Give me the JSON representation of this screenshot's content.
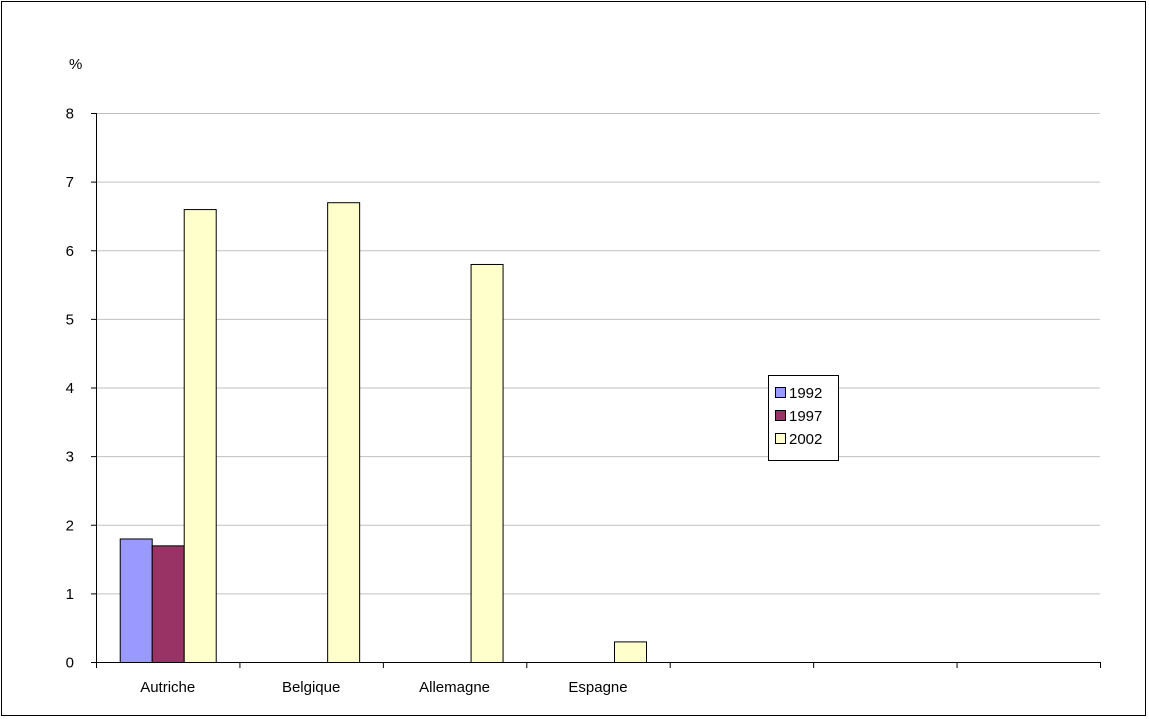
{
  "chart_data": {
    "type": "bar",
    "ylabel": "%",
    "ylim": [
      0,
      8
    ],
    "yticks": [
      0,
      1,
      2,
      3,
      4,
      5,
      6,
      7,
      8
    ],
    "grid": true,
    "legend_position": "right",
    "categories": [
      "Autriche",
      "Belgique",
      "Allemagne",
      "Espagne",
      "",
      "",
      ""
    ],
    "series": [
      {
        "name": "1992",
        "color": "#9999ff",
        "values": [
          1.8,
          null,
          null,
          null,
          null,
          null,
          null
        ]
      },
      {
        "name": "1997",
        "color": "#993366",
        "values": [
          1.7,
          null,
          null,
          null,
          null,
          null,
          null
        ]
      },
      {
        "name": "2002",
        "color": "#ffffcc",
        "values": [
          6.6,
          6.7,
          5.8,
          0.3,
          null,
          null,
          null
        ]
      }
    ]
  }
}
